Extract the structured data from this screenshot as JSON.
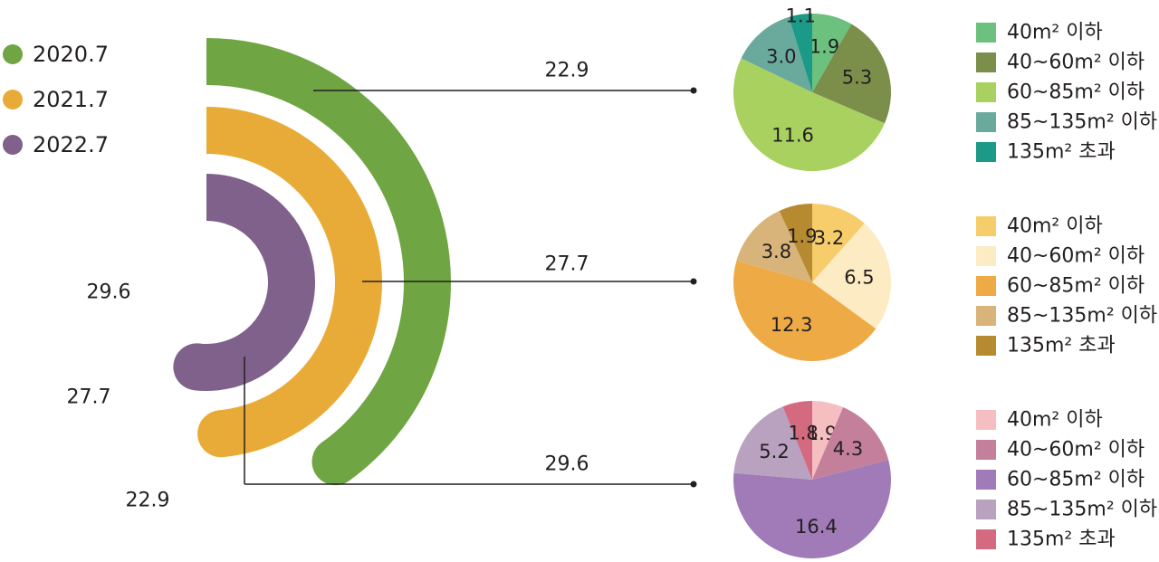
{
  "colors": {
    "y2020": "#6fa542",
    "y2021": "#e9ab37",
    "y2022": "#7f618b",
    "leader": "#231f20"
  },
  "legend_years": [
    {
      "label": "2020.7",
      "color": "#6fa542"
    },
    {
      "label": "2021.7",
      "color": "#e9ab37"
    },
    {
      "label": "2022.7",
      "color": "#7f618b"
    }
  ],
  "chart_data": [
    {
      "type": "radial-bar",
      "categories": [
        "2020.7",
        "2021.7",
        "2022.7"
      ],
      "values": [
        22.9,
        27.7,
        29.6
      ],
      "value_labels": [
        "22.9",
        "27.7",
        "29.6"
      ]
    },
    {
      "type": "pie",
      "year": "2020.7",
      "slices": [
        {
          "label": "40m² 이하",
          "value": 1.9,
          "text": "1.9",
          "color": "#6cc17f"
        },
        {
          "label": "40~60m² 이하",
          "value": 5.3,
          "text": "5.3",
          "color": "#7b8e4a"
        },
        {
          "label": "60~85m² 이하",
          "value": 11.6,
          "text": "11.6",
          "color": "#a8d160"
        },
        {
          "label": "85~135m² 이하",
          "value": 3.0,
          "text": "3.0",
          "color": "#6aaa9d"
        },
        {
          "label": "135m² 초과",
          "value": 1.1,
          "text": "1.1",
          "color": "#1a9a87"
        }
      ]
    },
    {
      "type": "pie",
      "year": "2021.7",
      "slices": [
        {
          "label": "40m² 이하",
          "value": 3.2,
          "text": "3.2",
          "color": "#f6cd6a"
        },
        {
          "label": "40~60m² 이하",
          "value": 6.5,
          "text": "6.5",
          "color": "#fdebc3"
        },
        {
          "label": "60~85m² 이하",
          "value": 12.3,
          "text": "12.3",
          "color": "#eeaa45"
        },
        {
          "label": "85~135m² 이하",
          "value": 3.8,
          "text": "3.8",
          "color": "#d8b47a"
        },
        {
          "label": "135m² 초과",
          "value": 1.9,
          "text": "1.9",
          "color": "#b68a30"
        }
      ]
    },
    {
      "type": "pie",
      "year": "2022.7",
      "slices": [
        {
          "label": "40m² 이하",
          "value": 1.9,
          "text": "1.9",
          "color": "#f5bfc1"
        },
        {
          "label": "40~60m² 이하",
          "value": 4.3,
          "text": "4.3",
          "color": "#c47f9b"
        },
        {
          "label": "60~85m² 이하",
          "value": 16.4,
          "text": "16.4",
          "color": "#a07bb8"
        },
        {
          "label": "85~135m² 이하",
          "value": 5.2,
          "text": "5.2",
          "color": "#b9a1c0"
        },
        {
          "label": "135m² 초과",
          "value": 1.8,
          "text": "1.8",
          "color": "#d36a80"
        }
      ]
    }
  ]
}
